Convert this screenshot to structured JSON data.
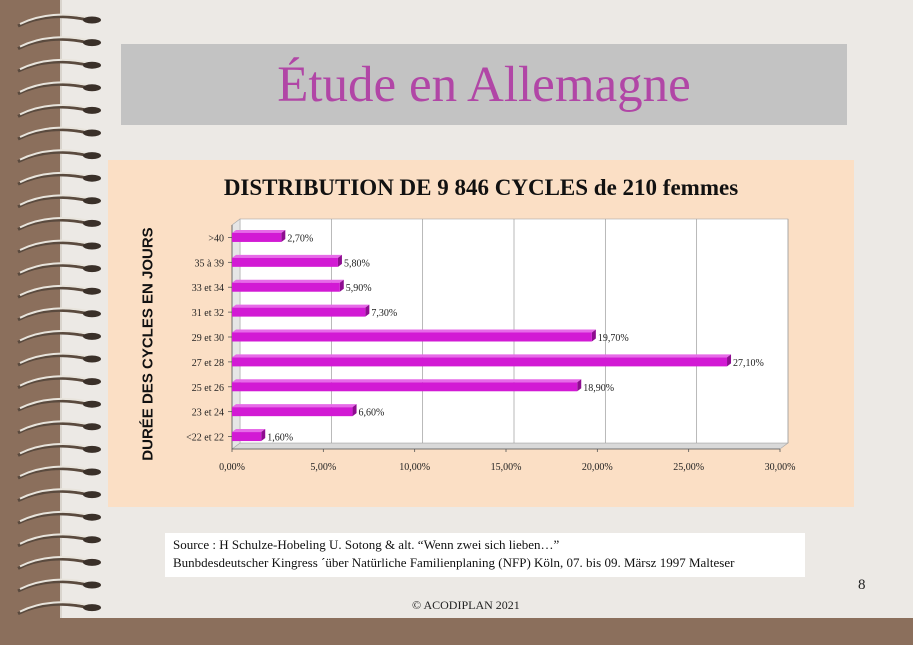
{
  "slide": {
    "title": "Étude en Allemagne",
    "page_number": "8",
    "copyright": "© ACODIPLAN 2021",
    "source_line1": "Source : H Schulze-Hobeling  U. Sotong  & alt. “Wenn zwei sich lieben…”",
    "source_line2": "Bunbdesdeutscher Kingress ´über Natürliche Familienplaning (NFP) Köln, 07. bis 09. Märsz 1997 Malteser",
    "title_color": "#b146a6"
  },
  "chart_data": {
    "type": "bar",
    "orientation": "horizontal",
    "title": "DISTRIBUTION DE 9 846 CYCLES de 210 femmes",
    "ylabel": "DURÉE DES CYCLES EN JOURS",
    "xlabel": "",
    "categories": [
      ">40",
      "35 à 39",
      "33 et 34",
      "31 et 32",
      "29 et 30",
      "27 et 28",
      "25 et 26",
      "23 et 24",
      "<22 et 22"
    ],
    "values": [
      2.7,
      5.8,
      5.9,
      7.3,
      19.7,
      27.1,
      18.9,
      6.6,
      1.6
    ],
    "value_labels": [
      "2,70%",
      "5,80%",
      "5,90%",
      "7,30%",
      "19,70%",
      "27,10%",
      "18,90%",
      "6,60%",
      "1,60%"
    ],
    "xlim": [
      0,
      30
    ],
    "xticks": [
      0,
      5,
      10,
      15,
      20,
      25,
      30
    ],
    "xtick_labels": [
      "0,00%",
      "5,00%",
      "10,00%",
      "15,00%",
      "20,00%",
      "25,00%",
      "30,00%"
    ],
    "grid": true,
    "bar_color": "#d21ad4"
  }
}
